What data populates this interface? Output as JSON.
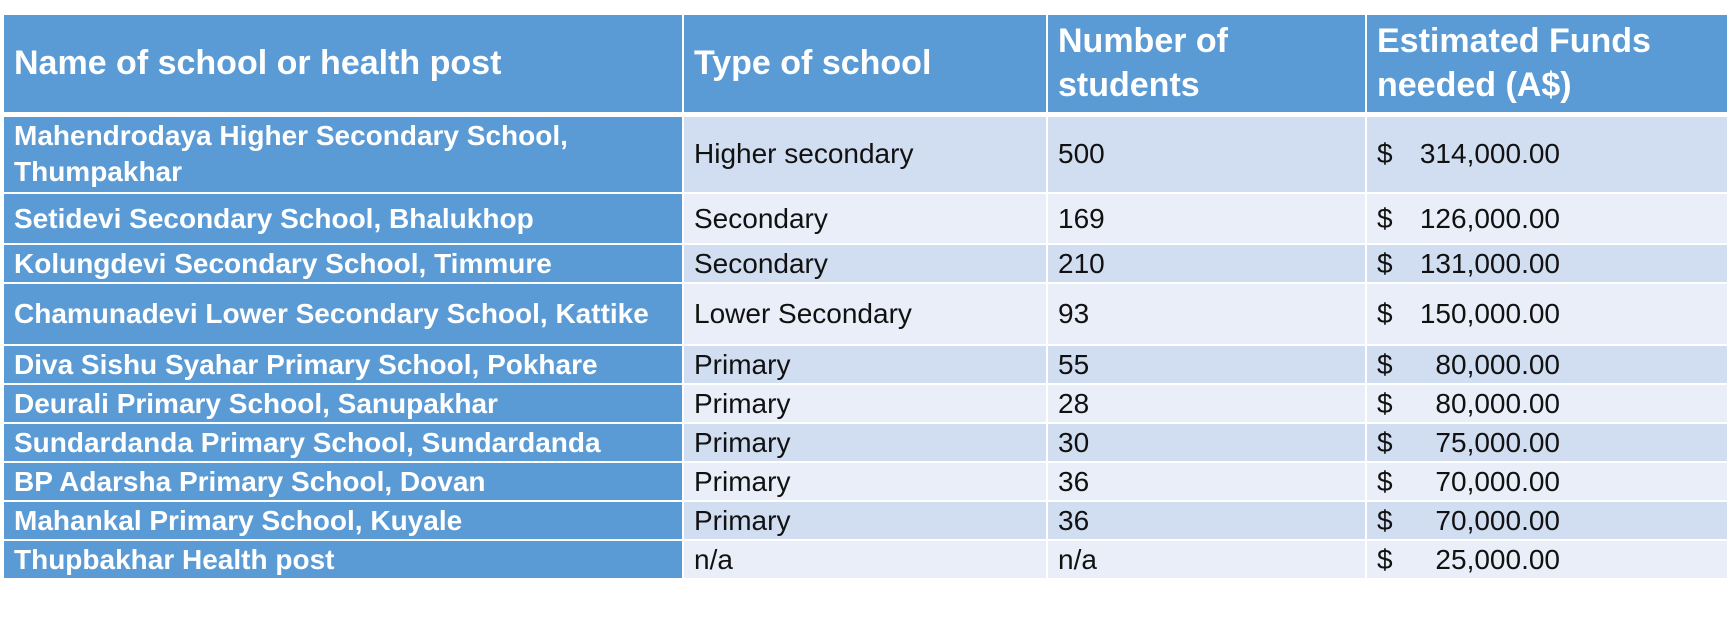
{
  "table": {
    "headers": {
      "name": "Name of school or health post",
      "type": "Type of school",
      "students": "Number of students",
      "funds": "Estimated Funds needed (A$)"
    },
    "currency_symbol": "$",
    "rows": [
      {
        "name": "Mahendrodaya Higher Secondary School, Thumpakhar",
        "type": "Higher secondary",
        "students": "500",
        "funds": "314,000.00"
      },
      {
        "name": "Setidevi Secondary School, Bhalukhop",
        "type": "Secondary",
        "students": "169",
        "funds": "126,000.00"
      },
      {
        "name": "Kolungdevi Secondary School, Timmure",
        "type": "Secondary",
        "students": "210",
        "funds": "131,000.00"
      },
      {
        "name": "Chamunadevi Lower Secondary School, Kattike",
        "type": "Lower Secondary",
        "students": "93",
        "funds": "150,000.00"
      },
      {
        "name": "Diva Sishu Syahar Primary School, Pokhare",
        "type": "Primary",
        "students": "55",
        "funds": "80,000.00"
      },
      {
        "name": "Deurali Primary School, Sanupakhar",
        "type": "Primary",
        "students": "28",
        "funds": "80,000.00"
      },
      {
        "name": "Sundardanda Primary School, Sundardanda",
        "type": "Primary",
        "students": "30",
        "funds": "75,000.00"
      },
      {
        "name": "BP Adarsha Primary School, Dovan",
        "type": "Primary",
        "students": "36",
        "funds": "70,000.00"
      },
      {
        "name": "Mahankal Primary School, Kuyale",
        "type": "Primary",
        "students": "36",
        "funds": "70,000.00"
      },
      {
        "name": "Thupbakhar Health post",
        "type": "n/a",
        "students": "n/a",
        "funds": "25,000.00"
      }
    ]
  }
}
